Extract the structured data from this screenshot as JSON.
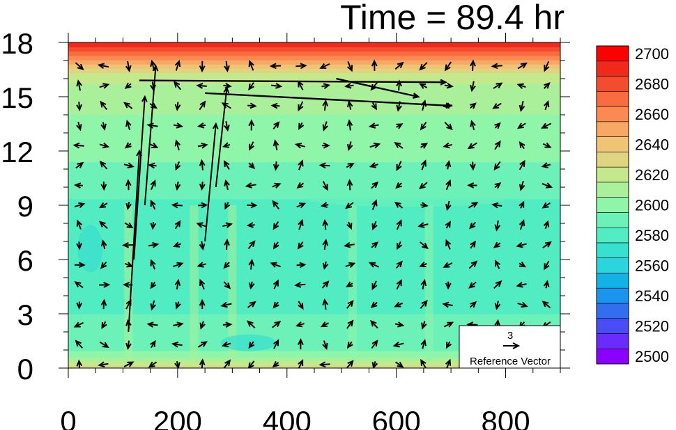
{
  "chart_data": {
    "type": "heatmap",
    "title": "Time = 89.4 hr",
    "x": {
      "label": "",
      "range": [
        0,
        900
      ],
      "ticks": [
        0,
        200,
        400,
        600,
        800
      ]
    },
    "y": {
      "label": "",
      "range": [
        0,
        18
      ],
      "ticks": [
        0,
        3,
        6,
        9,
        12,
        15,
        18
      ]
    },
    "colorbar": {
      "levels": [
        2500,
        2510,
        2520,
        2530,
        2540,
        2550,
        2560,
        2570,
        2580,
        2590,
        2600,
        2610,
        2620,
        2630,
        2640,
        2650,
        2660,
        2670,
        2680,
        2690,
        2700
      ],
      "labels": [
        2500,
        2520,
        2540,
        2560,
        2580,
        2600,
        2620,
        2640,
        2660,
        2680,
        2700
      ],
      "colors": [
        "#8a00ff",
        "#6a2bff",
        "#4a4df5",
        "#2f6ff0",
        "#1a94ee",
        "#13b2e6",
        "#2ad5dd",
        "#38e0cf",
        "#52ecc2",
        "#6cf2b8",
        "#8ef5a9",
        "#aaf09a",
        "#c4e98d",
        "#dfd580",
        "#f0c476",
        "#f7a864",
        "#fa8a52",
        "#f86c40",
        "#f44c2e",
        "#f0291c",
        "#ff0000"
      ]
    },
    "profile": {
      "height": [
        0,
        0.5,
        1,
        2,
        3,
        5,
        7,
        9,
        10,
        11,
        12,
        13,
        14,
        15,
        16,
        16.5,
        17,
        17.5,
        18
      ],
      "value": [
        2635,
        2612,
        2597,
        2592,
        2590,
        2588,
        2587,
        2589,
        2592,
        2598,
        2603,
        2607,
        2610,
        2614,
        2622,
        2636,
        2656,
        2682,
        2700
      ]
    },
    "reference_vector": {
      "magnitude": 3,
      "label": "Reference Vector"
    },
    "jets": [
      {
        "from": [
          130,
          15.9
        ],
        "to": [
          690,
          15.8
        ]
      },
      {
        "from": [
          250,
          15.2
        ],
        "to": [
          700,
          14.5
        ]
      },
      {
        "from": [
          490,
          16.0
        ],
        "to": [
          640,
          15.0
        ]
      }
    ]
  }
}
